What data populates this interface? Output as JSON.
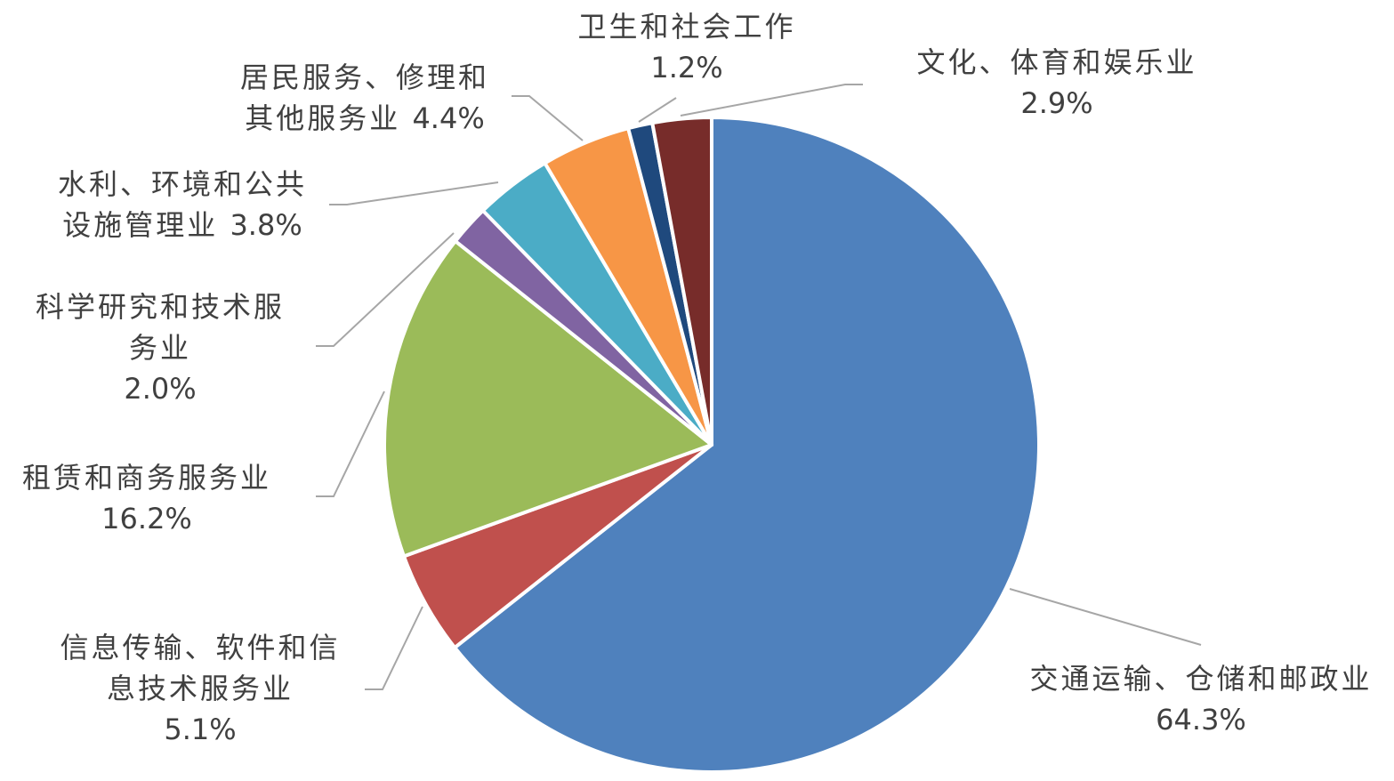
{
  "chart_data": {
    "type": "pie",
    "categories": [
      "交通运输、仓储和邮政业",
      "信息传输、软件和信息技术服务业",
      "租赁和商务服务业",
      "科学研究和技术服务业",
      "水利、环境和公共设施管理业",
      "居民服务、修理和其他服务业",
      "卫生和社会工作",
      "文化、体育和娱乐业"
    ],
    "values": [
      64.3,
      5.1,
      16.2,
      2.0,
      3.8,
      4.4,
      1.2,
      2.9
    ],
    "value_labels": [
      "64.3%",
      "5.1%",
      "16.2%",
      "2.0%",
      "3.8%",
      "4.4%",
      "1.2%",
      "2.9%"
    ],
    "colors": [
      "#4F81BD",
      "#C0504D",
      "#9BBB59",
      "#8064A2",
      "#4BACC6",
      "#F79646",
      "#1F497D",
      "#772C2A"
    ]
  }
}
